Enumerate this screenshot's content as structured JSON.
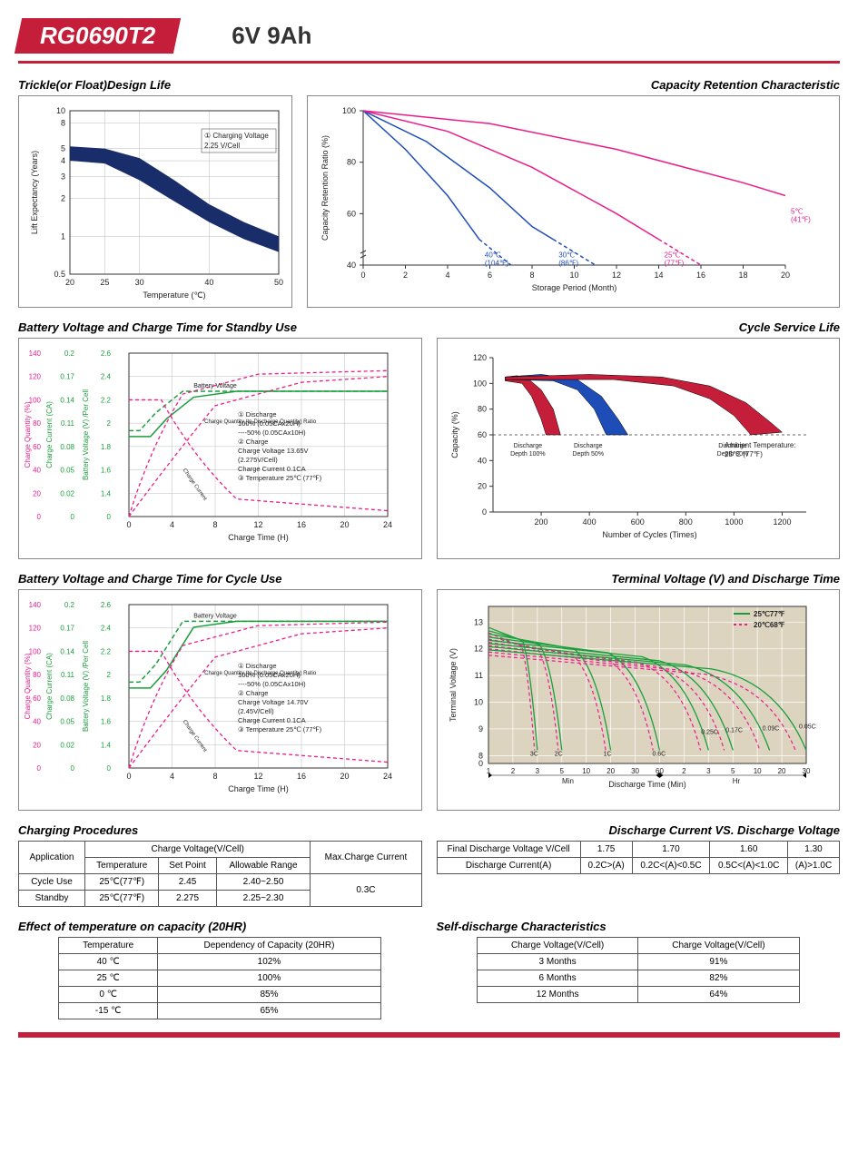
{
  "header": {
    "model": "RG0690T2",
    "spec": "6V  9Ah"
  },
  "colors": {
    "red": "#c41e3a",
    "navy": "#1a2d6b",
    "magenta": "#e91e8c",
    "green": "#1a9e3d",
    "blue": "#1e4db8",
    "grid": "#999999",
    "border": "#888888",
    "bg": "#ffffff",
    "chart_bg_tan": "#ddd4c0"
  },
  "chart1": {
    "title": "Trickle(or Float)Design Life",
    "xlabel": "Temperature (℃)",
    "ylabel": "Lift  Expectancy (Years)",
    "x_ticks": [
      20,
      25,
      30,
      40,
      50
    ],
    "y_ticks": [
      0.5,
      1,
      2,
      3,
      4,
      5,
      8,
      10
    ],
    "note": "① Charging Voltage\n    2.25 V/Cell",
    "band_upper": [
      [
        20,
        5.2
      ],
      [
        25,
        5.0
      ],
      [
        30,
        4.2
      ],
      [
        35,
        2.8
      ],
      [
        40,
        1.8
      ],
      [
        45,
        1.3
      ],
      [
        50,
        1.0
      ]
    ],
    "band_lower": [
      [
        20,
        4.0
      ],
      [
        25,
        3.8
      ],
      [
        30,
        2.8
      ],
      [
        35,
        1.9
      ],
      [
        40,
        1.3
      ],
      [
        45,
        0.95
      ],
      [
        50,
        0.75
      ]
    ],
    "band_color": "#1a2d6b"
  },
  "chart2": {
    "title": "Capacity Retention Characteristic",
    "xlabel": "Storage Period (Month)",
    "ylabel": "Capacity Retention Ratio (%)",
    "x_ticks": [
      0,
      2,
      4,
      6,
      8,
      10,
      12,
      14,
      16,
      18,
      20
    ],
    "y_ticks": [
      40,
      60,
      80,
      100
    ],
    "series": [
      {
        "label": "40℃\n(104℉)",
        "color": "#1e4db8",
        "pts": [
          [
            0,
            100
          ],
          [
            2,
            85
          ],
          [
            4,
            67
          ],
          [
            5.5,
            50
          ]
        ],
        "dash_pts": [
          [
            5.5,
            50
          ],
          [
            7,
            40
          ]
        ]
      },
      {
        "label": "30℃\n(86℉)",
        "color": "#1e4db8",
        "pts": [
          [
            0,
            100
          ],
          [
            3,
            88
          ],
          [
            6,
            70
          ],
          [
            8,
            55
          ],
          [
            9,
            50
          ]
        ],
        "dash_pts": [
          [
            9,
            50
          ],
          [
            11,
            40
          ]
        ]
      },
      {
        "label": "25℃\n(77℉)",
        "color": "#e91e8c",
        "pts": [
          [
            0,
            100
          ],
          [
            4,
            92
          ],
          [
            8,
            78
          ],
          [
            12,
            60
          ],
          [
            14,
            50
          ]
        ],
        "dash_pts": [
          [
            14,
            50
          ],
          [
            16,
            40
          ]
        ]
      },
      {
        "label": "5℃\n(41℉)",
        "color": "#e91e8c",
        "pts": [
          [
            0,
            100
          ],
          [
            6,
            95
          ],
          [
            12,
            85
          ],
          [
            18,
            72
          ],
          [
            20,
            67
          ]
        ]
      }
    ]
  },
  "chart3": {
    "title": "Battery Voltage and Charge Time for Standby Use",
    "xlabel": "Charge Time (H)",
    "y1": {
      "label": "Charge Quantity (%)",
      "ticks": [
        0,
        20,
        40,
        60,
        80,
        100,
        120,
        140
      ],
      "color": "#e91e8c"
    },
    "y2": {
      "label": "Charge Current (CA)",
      "ticks": [
        0,
        0.02,
        0.05,
        0.08,
        0.11,
        0.14,
        0.17,
        0.2
      ],
      "color": "#1a9e3d"
    },
    "y3": {
      "label": "Battery Voltage (V) /Per Cell",
      "ticks": [
        0,
        1.4,
        1.6,
        1.8,
        2.0,
        2.2,
        2.4,
        2.6
      ],
      "color": "#1a9e3d"
    },
    "x_ticks": [
      0,
      4,
      8,
      12,
      16,
      20,
      24
    ],
    "notes": [
      "① Discharge",
      "   100% (0.05CAx20H)",
      "----50% (0.05CAx10H)",
      "② Charge",
      "   Charge Voltage 13.65V",
      "   (2.275V/Cell)",
      "   Charge Current 0.1CA",
      "③ Temperature 25℃ (77℉)"
    ],
    "bv_label": "Battery Voltage",
    "cq_label": "Charge Quantity (to-Discharge Quantity) Ratio",
    "cc_label": "Charge Current"
  },
  "chart4": {
    "title": "Cycle Service Life",
    "xlabel": "Number of Cycles (Times)",
    "ylabel": "Capacity (%)",
    "x_ticks": [
      200,
      400,
      600,
      800,
      1000,
      1200
    ],
    "y_ticks": [
      0,
      20,
      40,
      60,
      80,
      100,
      120
    ],
    "note": "Ambient Temperature:\n25℃ (77℉)",
    "wedges": [
      {
        "label": "Discharge\nDepth 100%",
        "color": "#c41e3a",
        "upper": [
          [
            50,
            105
          ],
          [
            100,
            106
          ],
          [
            150,
            103
          ],
          [
            200,
            95
          ],
          [
            250,
            80
          ],
          [
            280,
            60
          ]
        ],
        "lower": [
          [
            50,
            102
          ],
          [
            120,
            100
          ],
          [
            160,
            90
          ],
          [
            200,
            72
          ],
          [
            220,
            60
          ]
        ]
      },
      {
        "label": "Discharge\nDepth 50%",
        "color": "#1e4db8",
        "upper": [
          [
            50,
            105
          ],
          [
            200,
            107
          ],
          [
            350,
            103
          ],
          [
            450,
            90
          ],
          [
            520,
            72
          ],
          [
            560,
            60
          ]
        ],
        "lower": [
          [
            50,
            103
          ],
          [
            250,
            102
          ],
          [
            350,
            95
          ],
          [
            420,
            80
          ],
          [
            470,
            60
          ]
        ]
      },
      {
        "label": "Discharge\nDepth 30%",
        "color": "#c41e3a",
        "upper": [
          [
            50,
            105
          ],
          [
            400,
            107
          ],
          [
            700,
            105
          ],
          [
            900,
            98
          ],
          [
            1050,
            85
          ],
          [
            1150,
            70
          ],
          [
            1200,
            62
          ]
        ],
        "lower": [
          [
            50,
            103
          ],
          [
            500,
            103
          ],
          [
            750,
            98
          ],
          [
            900,
            88
          ],
          [
            1000,
            75
          ],
          [
            1070,
            60
          ]
        ]
      }
    ]
  },
  "chart5": {
    "title": "Battery Voltage and Charge Time for Cycle Use",
    "xlabel": "Charge Time (H)",
    "notes": [
      "① Discharge",
      "   100% (0.05CAx20H)",
      "----50% (0.05CAx10H)",
      "② Charge",
      "   Charge Voltage 14.70V",
      "   (2.45V/Cell)",
      "   Charge Current 0.1CA",
      "③ Temperature 25℃ (77℉)"
    ]
  },
  "chart6": {
    "title": "Terminal Voltage (V) and Discharge Time",
    "xlabel": "Discharge Time (Min)",
    "ylabel": "Terminal Voltage (V)",
    "y_ticks": [
      0,
      8,
      9,
      10,
      11,
      12,
      13
    ],
    "legend": [
      {
        "label": "25℃77℉",
        "color": "#1a9e3d",
        "dash": false
      },
      {
        "label": "20℃68℉",
        "color": "#e91e8c",
        "dash": true
      }
    ],
    "rate_labels": [
      "3C",
      "2C",
      "1C",
      "0.6C",
      "0.25C",
      "0.17C",
      "0.09C",
      "0.05C"
    ],
    "x_sections": [
      "Min",
      "Hr"
    ]
  },
  "table1": {
    "title": "Charging Procedures",
    "headers": [
      "Application",
      "Charge Voltage(V/Cell)",
      "Max.Charge Current"
    ],
    "subheaders": [
      "Temperature",
      "Set Point",
      "Allowable Range"
    ],
    "rows": [
      [
        "Cycle Use",
        "25℃(77℉)",
        "2.45",
        "2.40~2.50",
        "0.3C"
      ],
      [
        "Standby",
        "25℃(77℉)",
        "2.275",
        "2.25~2.30",
        ""
      ]
    ]
  },
  "table2": {
    "title": "Discharge Current VS. Discharge Voltage",
    "rows": [
      [
        "Final Discharge Voltage V/Cell",
        "1.75",
        "1.70",
        "1.60",
        "1.30"
      ],
      [
        "Discharge Current(A)",
        "0.2C>(A)",
        "0.2C<(A)<0.5C",
        "0.5C<(A)<1.0C",
        "(A)>1.0C"
      ]
    ]
  },
  "table3": {
    "title": "Effect of temperature on capacity (20HR)",
    "headers": [
      "Temperature",
      "Dependency of Capacity (20HR)"
    ],
    "rows": [
      [
        "40 ℃",
        "102%"
      ],
      [
        "25 ℃",
        "100%"
      ],
      [
        "0 ℃",
        "85%"
      ],
      [
        "-15 ℃",
        "65%"
      ]
    ]
  },
  "table4": {
    "title": "Self-discharge Characteristics",
    "headers": [
      "Charge Voltage(V/Cell)",
      "Charge Voltage(V/Cell)"
    ],
    "rows": [
      [
        "3 Months",
        "91%"
      ],
      [
        "6 Months",
        "82%"
      ],
      [
        "12 Months",
        "64%"
      ]
    ]
  }
}
